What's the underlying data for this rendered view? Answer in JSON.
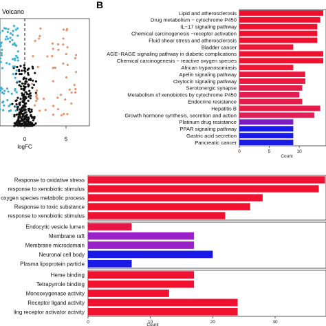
{
  "panel_b_label": "B",
  "volcano": {
    "title": "Volcano",
    "xlabel": "logFC",
    "x_tick_labels": [
      "0",
      "5"
    ]
  },
  "chart_data": [
    {
      "type": "scatter",
      "title": "Volcano",
      "xlabel": "logFC",
      "ylabel": "",
      "xlim": [
        -4.5,
        7
      ],
      "x_ticks": [
        0,
        5
      ],
      "threshold_x": 0,
      "colors": {
        "down": "#3cb1d1",
        "up": "#e8936a",
        "ns": "#111111"
      },
      "points_note_omitted": ""
    },
    {
      "type": "bar",
      "orientation": "horizontal",
      "xlabel": "Count",
      "x_ticks": [
        0,
        5,
        10
      ],
      "xlim": [
        0,
        14
      ],
      "categories": [
        "Lipid and atherosclerosis",
        "Drug metabolism − cytochrome P450",
        "IL−17 signaling pathway",
        "Chemical carcinogenesis −receptor activation",
        "Fluid shear stress and atherosclerosis",
        "Bladder cancer",
        "AGE−RAGE signaling pathway in diabetic complications",
        "Chemical carcinogenesis − reactive oxygen species",
        "African trypanosomiasis",
        "Apelin signaling pathway",
        "Oxytocin signaling pathway",
        "Serotonergic synapse",
        "Metabolism of xenobiotics by cytochrome P450",
        "Endocrine resistance",
        "Hepatitis B",
        "Growth hormone synthesis, secretion and action",
        "Platinum drug resistance",
        "PPAR signaling pathway",
        "Gastric acid secretion",
        "Pancreatic cancer"
      ],
      "values": [
        14,
        13.5,
        13,
        13,
        13,
        9,
        14,
        14,
        9,
        11,
        11,
        10.5,
        10,
        10.5,
        13.5,
        12.5,
        9,
        9,
        9,
        9
      ],
      "colors": [
        "#f01030",
        "#f01030",
        "#f01030",
        "#f01030",
        "#f01030",
        "#ee1535",
        "#f01030",
        "#f01030",
        "#ee1535",
        "#e91a3f",
        "#e91a3f",
        "#e31d4a",
        "#e01e4f",
        "#e31d4a",
        "#e41a48",
        "#dd1f55",
        "#7a1ec0",
        "#1a1ae6",
        "#1a1ae6",
        "#1a1ae6"
      ]
    },
    {
      "type": "bar",
      "orientation": "horizontal",
      "xlabel": "Count",
      "x_ticks": [
        0,
        10,
        20,
        30
      ],
      "xlim": [
        0,
        38
      ],
      "groups": [
        {
          "categories": [
            "Response to oxidative stress",
            "response to xenobiotic stimulus",
            "oxygen species metabolic process",
            "Response to toxic substance",
            "response to xenobiotic stimulus"
          ],
          "values": [
            38,
            37,
            28,
            26,
            22
          ],
          "colors": [
            "#f01030",
            "#f01030",
            "#f01030",
            "#f01030",
            "#f01030"
          ]
        },
        {
          "categories": [
            "Endocytic vesicle lumen",
            "Membrane raft",
            "Membrane microdomain",
            "Neuronal cell body",
            "Plasma lipoprotein particle"
          ],
          "values": [
            7,
            17,
            17,
            20,
            7
          ],
          "colors": [
            "#e81548",
            "#9a20c8",
            "#9a20c8",
            "#1a1ae6",
            "#1a1ae6"
          ]
        },
        {
          "categories": [
            "Heme binding",
            "Tetrapyrrole binding",
            "Monooxygenase activity",
            "Receptor ligand activity",
            "ling receptor activator activity"
          ],
          "values": [
            17,
            17,
            13,
            24,
            24
          ],
          "colors": [
            "#f01030",
            "#f01030",
            "#f01030",
            "#f01030",
            "#f01030"
          ]
        }
      ]
    }
  ]
}
